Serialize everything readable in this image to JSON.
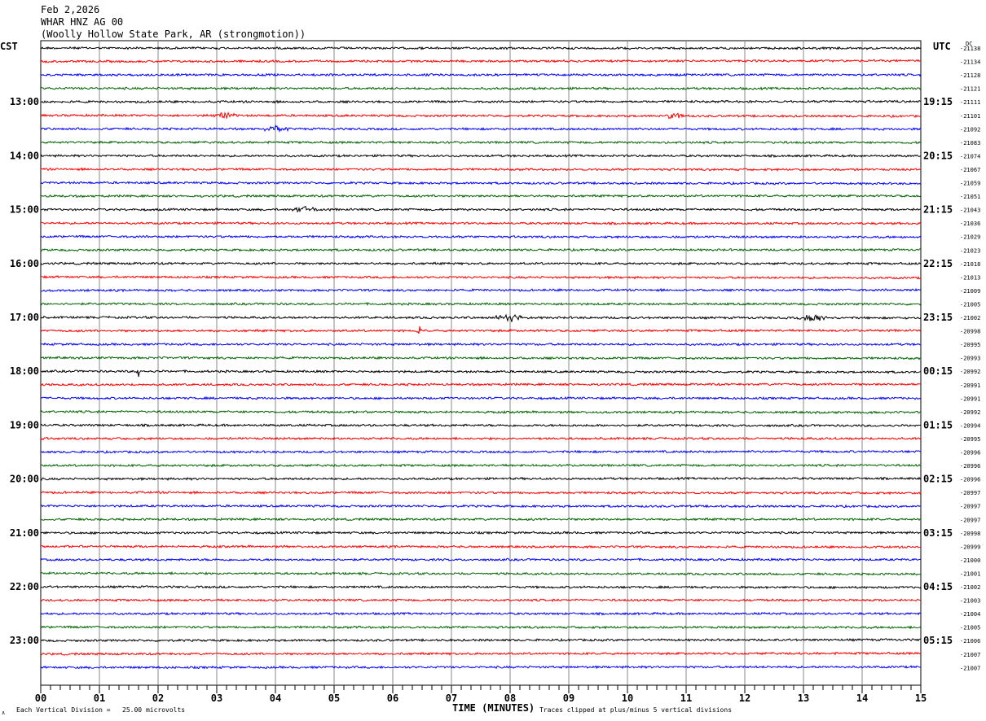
{
  "header": {
    "date": "Feb 2,2026",
    "station": "WHAR HNZ AG 00",
    "location": "(Woolly Hollow State Park, AR (strongmotion))"
  },
  "left_timezone": "CST",
  "right_timezone": "UTC",
  "dc_label": "DC",
  "footer": {
    "scale_note": "Each Vertical Division =   25.00 microvolts",
    "clip_note": "Traces clipped at plus/minus 5 vertical divisions"
  },
  "trace_colors": [
    "#000000",
    "#ff0000",
    "#0000ff",
    "#006400"
  ],
  "chart_data": {
    "type": "line",
    "xlabel": "TIME (MINUTES)",
    "x_ticks": [
      "00",
      "01",
      "02",
      "03",
      "04",
      "05",
      "06",
      "07",
      "08",
      "09",
      "10",
      "11",
      "12",
      "13",
      "14",
      "15"
    ],
    "xlim": [
      0,
      15
    ],
    "left_hour_labels": [
      "13:00",
      "14:00",
      "15:00",
      "16:00",
      "17:00",
      "18:00",
      "19:00",
      "20:00",
      "21:00",
      "22:00",
      "23:00"
    ],
    "right_hour_labels": [
      "19:15",
      "20:15",
      "21:15",
      "22:15",
      "23:15",
      "00:15",
      "01:15",
      "02:15",
      "03:15",
      "04:15",
      "05:15"
    ],
    "dc_offsets": [
      "-21138",
      "-21134",
      "-21128",
      "-21121",
      "-21111",
      "-21101",
      "-21092",
      "-21083",
      "-21074",
      "-21067",
      "-21059",
      "-21051",
      "-21043",
      "-21036",
      "-21029",
      "-21023",
      "-21018",
      "-21013",
      "-21009",
      "-21005",
      "-21002",
      "-20998",
      "-20995",
      "-20993",
      "-20992",
      "-20991",
      "-20991",
      "-20992",
      "-20994",
      "-20995",
      "-20996",
      "-20996",
      "-20996",
      "-20997",
      "-20997",
      "-20997",
      "-20998",
      "-20999",
      "-21000",
      "-21001",
      "-21002",
      "-21003",
      "-21004",
      "-21005",
      "-21006",
      "-21007",
      "-21007"
    ],
    "grid": true,
    "events": [
      {
        "trace": 5,
        "minute": 3.1,
        "amplitude": 4
      },
      {
        "trace": 5,
        "minute": 10.8,
        "amplitude": 4
      },
      {
        "trace": 6,
        "minute": 4.0,
        "amplitude": 4
      },
      {
        "trace": 12,
        "minute": 4.5,
        "amplitude": 4
      },
      {
        "trace": 20,
        "minute": 8.0,
        "amplitude": 5
      },
      {
        "trace": 20,
        "minute": 13.2,
        "amplitude": 5
      },
      {
        "trace": 21,
        "minute": 6.45,
        "amplitude": 9
      },
      {
        "trace": 24,
        "minute": 1.67,
        "amplitude": 8
      }
    ]
  }
}
